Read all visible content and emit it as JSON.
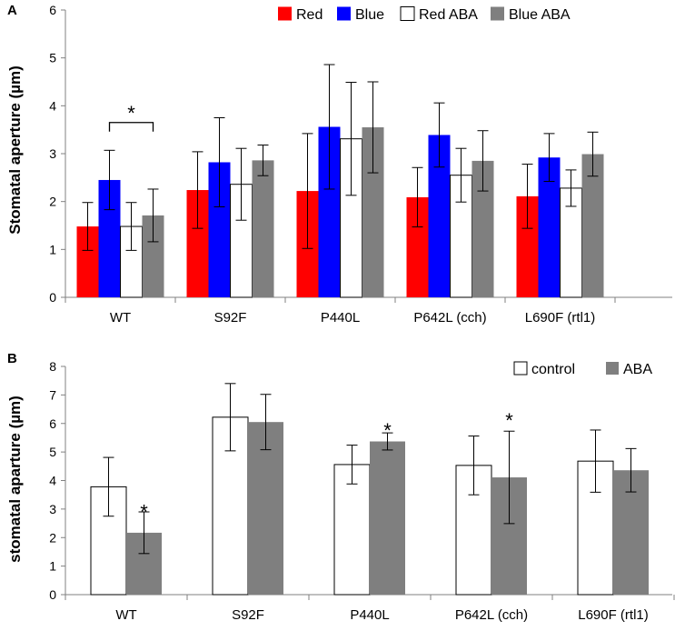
{
  "chart_data": [
    {
      "type": "bar",
      "panel_label": "A",
      "ylabel": "Stomatal aperture (µm)",
      "ylim": [
        0,
        6
      ],
      "yticks": [
        "0",
        "1",
        "2",
        "3",
        "4",
        "5",
        "6"
      ],
      "categories": [
        "WT",
        "S92F",
        "P440L",
        "P642L (cch)",
        "L690F (rtl1)"
      ],
      "legend_position": "top",
      "colors": {
        "red": "#ff0000",
        "blue": "#0000ff",
        "white": "#ffffff",
        "gray": "#7f7f7f"
      },
      "series": [
        {
          "name": "Red",
          "color": "#ff0000",
          "values": [
            1.48,
            2.24,
            2.22,
            2.09,
            2.11
          ],
          "errors": [
            0.5,
            0.8,
            1.2,
            0.62,
            0.67
          ]
        },
        {
          "name": "Blue",
          "color": "#0000ff",
          "values": [
            2.45,
            2.82,
            3.56,
            3.39,
            2.92
          ],
          "errors": [
            0.62,
            0.93,
            1.3,
            0.67,
            0.5
          ]
        },
        {
          "name": "Red ABA",
          "color": "#ffffff",
          "values": [
            1.48,
            2.36,
            3.31,
            2.55,
            2.28
          ],
          "errors": [
            0.5,
            0.75,
            1.18,
            0.56,
            0.38
          ]
        },
        {
          "name": "Blue ABA",
          "color": "#7f7f7f",
          "values": [
            1.71,
            2.86,
            3.55,
            2.85,
            2.99
          ],
          "errors": [
            0.55,
            0.32,
            0.95,
            0.63,
            0.46
          ]
        }
      ],
      "annotations": [
        {
          "text": "*",
          "type": "bracket",
          "category": "WT",
          "from_series": "Blue",
          "to_series": "Blue ABA",
          "y": 3.65
        }
      ]
    },
    {
      "type": "bar",
      "panel_label": "B",
      "ylabel": "stomatal aparture (µm)",
      "ylim": [
        0,
        8
      ],
      "yticks": [
        "0",
        "1",
        "2",
        "3",
        "4",
        "5",
        "6",
        "7",
        "8"
      ],
      "categories": [
        "WT",
        "S92F",
        "P440L",
        "P642L (cch)",
        "L690F (rtl1)"
      ],
      "legend_position": "top-right",
      "series": [
        {
          "name": "control",
          "color": "#ffffff",
          "values": [
            3.78,
            6.22,
            4.56,
            4.53,
            4.68
          ],
          "errors": [
            1.03,
            1.18,
            0.68,
            1.03,
            1.09
          ]
        },
        {
          "name": "ABA",
          "color": "#7f7f7f",
          "values": [
            2.17,
            6.05,
            5.37,
            4.11,
            4.36
          ],
          "errors": [
            0.73,
            0.97,
            0.3,
            1.62,
            0.76
          ]
        }
      ],
      "annotations": [
        {
          "text": "*",
          "category": "WT",
          "series": "ABA",
          "y": 3.05
        },
        {
          "text": "*",
          "category": "P440L",
          "series": "ABA",
          "y": 5.9
        },
        {
          "text": "*",
          "category": "P642L (cch)",
          "series": "ABA",
          "y": 6.25
        }
      ]
    }
  ]
}
